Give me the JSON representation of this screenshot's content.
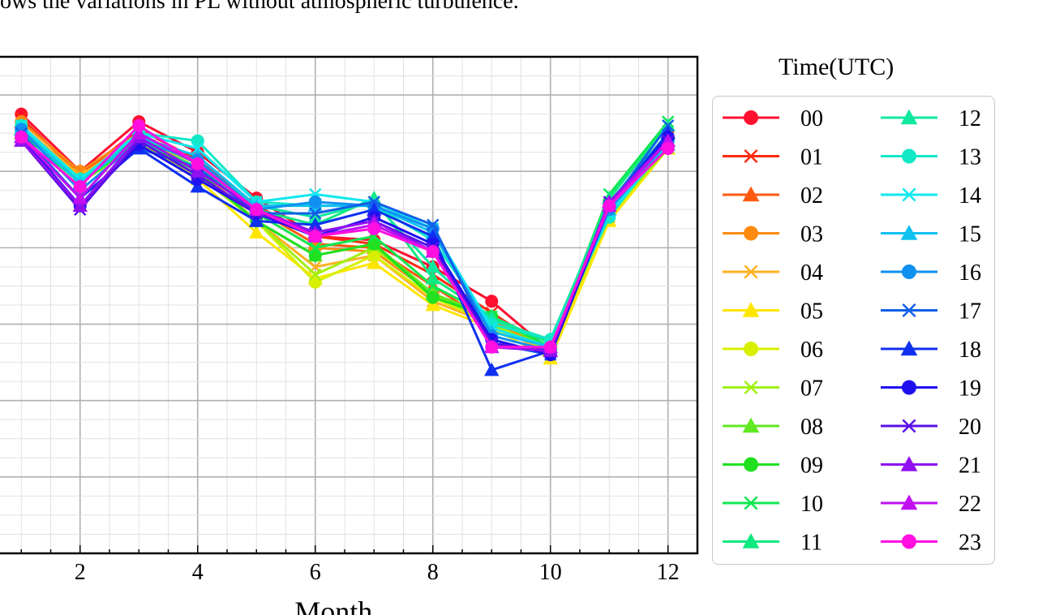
{
  "caption": "ows the variations in PL without atmospheric turbulence.",
  "chart_data": {
    "type": "line",
    "xlabel": "Month",
    "ylabel": "",
    "xlim": [
      0.5,
      12.5
    ],
    "ylim": [
      0,
      13
    ],
    "xticks": [
      2,
      4,
      6,
      8,
      10,
      12
    ],
    "xtick_labels": [
      "2",
      "4",
      "6",
      "8",
      "10",
      "12"
    ],
    "grid": true,
    "legend_title": "Time(UTC)",
    "legend_position": "right",
    "x": [
      1,
      2,
      3,
      4,
      5,
      6,
      7,
      8,
      9,
      10,
      11,
      12
    ],
    "series": [
      {
        "name": "00",
        "color": "#ff1030",
        "marker": "circle",
        "values": [
          11.5,
          10.0,
          11.3,
          10.5,
          9.3,
          8.3,
          8.2,
          7.5,
          6.6,
          5.3,
          9.2,
          10.9
        ]
      },
      {
        "name": "01",
        "color": "#ff2a10",
        "marker": "x",
        "values": [
          11.4,
          9.9,
          11.1,
          10.3,
          9.1,
          8.3,
          8.1,
          7.3,
          6.3,
          5.3,
          9.1,
          10.9
        ]
      },
      {
        "name": "02",
        "color": "#ff5a10",
        "marker": "triangle",
        "values": [
          11.3,
          10.0,
          11.0,
          10.2,
          9.0,
          8.1,
          8.0,
          7.0,
          6.0,
          5.3,
          9.0,
          10.8
        ]
      },
      {
        "name": "03",
        "color": "#ff8a10",
        "marker": "circle",
        "values": [
          11.3,
          10.0,
          11.0,
          10.2,
          8.9,
          8.0,
          7.9,
          6.8,
          6.1,
          5.3,
          9.0,
          10.8
        ]
      },
      {
        "name": "04",
        "color": "#ffb020",
        "marker": "x",
        "values": [
          11.2,
          9.9,
          10.9,
          10.1,
          8.7,
          7.5,
          7.8,
          6.6,
          6.0,
          5.2,
          8.8,
          10.7
        ]
      },
      {
        "name": "05",
        "color": "#ffe600",
        "marker": "triangle",
        "values": [
          11.1,
          9.8,
          10.8,
          9.8,
          8.4,
          7.2,
          7.6,
          6.5,
          5.9,
          5.1,
          8.7,
          10.6
        ]
      },
      {
        "name": "06",
        "color": "#d8f000",
        "marker": "circle",
        "values": [
          11.1,
          9.7,
          10.7,
          9.9,
          8.7,
          7.1,
          7.8,
          6.7,
          6.0,
          5.3,
          8.8,
          10.6
        ]
      },
      {
        "name": "07",
        "color": "#a0f010",
        "marker": "x",
        "values": [
          11.0,
          9.7,
          10.7,
          9.9,
          8.7,
          7.3,
          8.0,
          6.8,
          6.0,
          5.3,
          8.9,
          10.6
        ]
      },
      {
        "name": "08",
        "color": "#60e820",
        "marker": "triangle",
        "values": [
          11.0,
          9.7,
          10.8,
          10.0,
          8.7,
          7.8,
          8.1,
          6.8,
          6.2,
          5.3,
          9.1,
          10.7
        ]
      },
      {
        "name": "09",
        "color": "#20e020",
        "marker": "circle",
        "values": [
          11.0,
          9.7,
          10.8,
          10.0,
          8.7,
          7.8,
          8.1,
          6.7,
          6.2,
          5.4,
          9.2,
          10.9
        ]
      },
      {
        "name": "10",
        "color": "#10e850",
        "marker": "x",
        "values": [
          11.0,
          9.7,
          10.8,
          10.1,
          8.9,
          8.0,
          8.3,
          7.0,
          6.2,
          5.4,
          9.4,
          11.3
        ]
      },
      {
        "name": "11",
        "color": "#10e880",
        "marker": "triangle",
        "values": [
          11.1,
          9.8,
          10.8,
          10.1,
          9.0,
          8.6,
          9.3,
          7.2,
          6.2,
          5.5,
          9.3,
          11.2
        ]
      },
      {
        "name": "12",
        "color": "#10e8a0",
        "marker": "triangle",
        "values": [
          11.1,
          9.8,
          10.9,
          10.2,
          9.1,
          8.8,
          9.2,
          7.5,
          6.1,
          5.6,
          9.2,
          11.0
        ]
      },
      {
        "name": "13",
        "color": "#10e8c8",
        "marker": "circle",
        "values": [
          11.2,
          9.8,
          11.0,
          10.8,
          9.2,
          9.1,
          9.1,
          8.2,
          6.0,
          5.6,
          8.8,
          10.8
        ]
      },
      {
        "name": "14",
        "color": "#10e8f0",
        "marker": "x",
        "values": [
          11.2,
          9.8,
          11.0,
          10.6,
          9.2,
          9.4,
          9.2,
          8.5,
          5.9,
          5.4,
          8.9,
          10.7
        ]
      },
      {
        "name": "15",
        "color": "#10c0f0",
        "marker": "triangle",
        "values": [
          11.1,
          9.7,
          10.9,
          10.4,
          9.1,
          9.1,
          9.1,
          8.4,
          5.8,
          5.4,
          9.0,
          10.7
        ]
      },
      {
        "name": "16",
        "color": "#1090f0",
        "marker": "circle",
        "values": [
          11.1,
          9.5,
          10.8,
          10.3,
          9.0,
          9.2,
          9.1,
          8.5,
          5.7,
          5.3,
          9.0,
          10.8
        ]
      },
      {
        "name": "17",
        "color": "#1060e8",
        "marker": "x",
        "values": [
          11.0,
          9.3,
          10.6,
          10.1,
          8.9,
          8.9,
          9.2,
          8.6,
          5.5,
          5.2,
          9.1,
          11.2
        ]
      },
      {
        "name": "18",
        "color": "#1030f0",
        "marker": "triangle",
        "values": [
          10.9,
          9.3,
          10.6,
          9.6,
          8.7,
          8.6,
          9.0,
          8.3,
          4.8,
          5.3,
          9.1,
          11.0
        ]
      },
      {
        "name": "19",
        "color": "#2010f0",
        "marker": "circle",
        "values": [
          10.9,
          9.1,
          10.7,
          9.8,
          8.9,
          8.3,
          8.8,
          8.1,
          5.6,
          5.2,
          9.1,
          10.9
        ]
      },
      {
        "name": "20",
        "color": "#5a10e8",
        "marker": "x",
        "values": [
          10.8,
          9.0,
          10.8,
          9.9,
          8.9,
          8.4,
          8.7,
          8.0,
          5.5,
          5.3,
          9.2,
          10.8
        ]
      },
      {
        "name": "21",
        "color": "#9010f0",
        "marker": "triangle",
        "values": [
          10.8,
          9.1,
          10.9,
          10.0,
          9.0,
          8.4,
          8.7,
          7.9,
          5.4,
          5.3,
          9.2,
          10.8
        ]
      },
      {
        "name": "22",
        "color": "#c010f0",
        "marker": "triangle",
        "values": [
          10.9,
          9.3,
          11.0,
          10.2,
          9.0,
          8.3,
          8.6,
          7.9,
          5.4,
          5.4,
          9.1,
          10.8
        ]
      },
      {
        "name": "23",
        "color": "#ff10e0",
        "marker": "circle",
        "values": [
          10.9,
          9.6,
          11.2,
          10.2,
          9.0,
          8.3,
          8.5,
          7.9,
          5.4,
          5.4,
          9.1,
          10.6
        ]
      }
    ]
  }
}
